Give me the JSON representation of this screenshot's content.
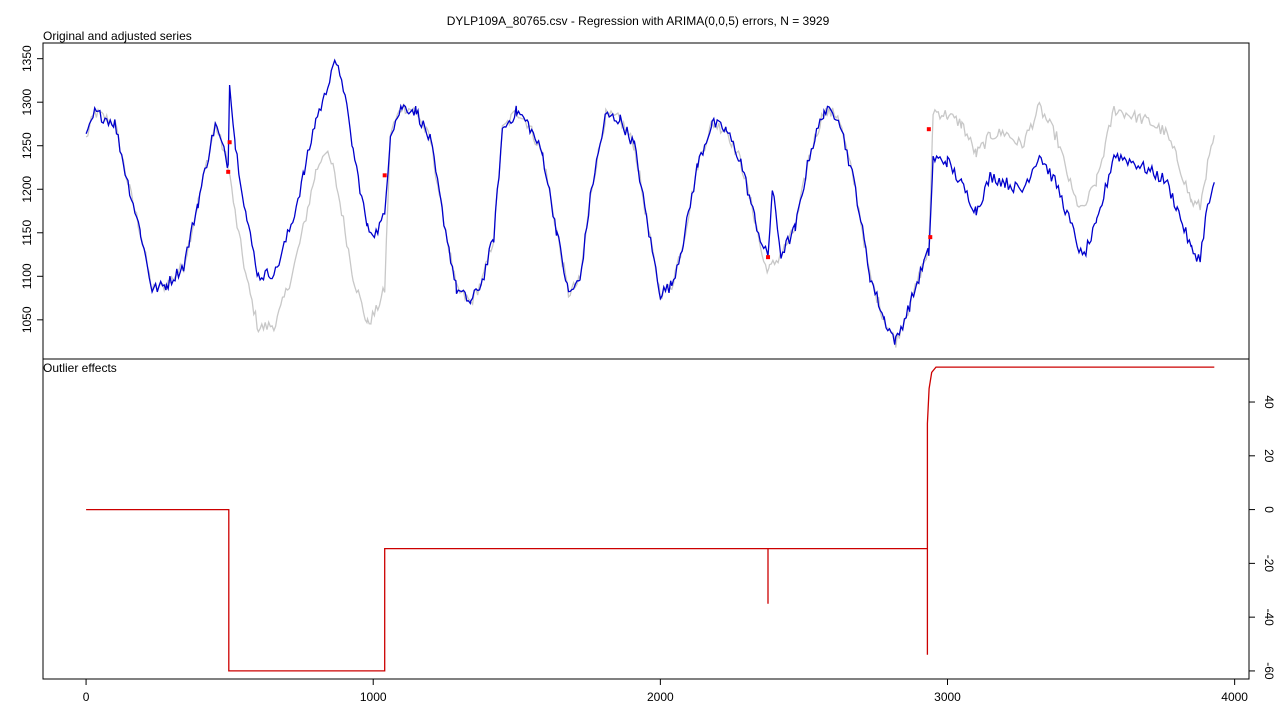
{
  "chart_data": [
    {
      "type": "line",
      "title": "DYLP109A_80765.csv - Regression with ARIMA(0,0,5) errors, N = 3929",
      "panel_label": "Original and adjusted series",
      "xlim": [
        -150,
        4050
      ],
      "ylim": [
        1005,
        1368
      ],
      "xticks": [
        0,
        1000,
        2000,
        3000,
        4000
      ],
      "yticks": [
        1050,
        1100,
        1150,
        1200,
        1250,
        1300,
        1350
      ],
      "colors": {
        "original": "#c8c8c8",
        "adjusted": "#0000cc",
        "outlier_marker": "#ff0000"
      },
      "series": [
        {
          "role": "original",
          "x": [
            0,
            30,
            60,
            100,
            140,
            190,
            230,
            280,
            340,
            390,
            450,
            495,
            520,
            560,
            600,
            660,
            720,
            760,
            800,
            830,
            860,
            890,
            930,
            980,
            1010,
            1040,
            1060,
            1100,
            1150,
            1200,
            1240,
            1290,
            1340,
            1380,
            1420,
            1450,
            1500,
            1540,
            1590,
            1640,
            1680,
            1720,
            1760,
            1810,
            1860,
            1910,
            1960,
            2000,
            2040,
            2080,
            2130,
            2180,
            2230,
            2280,
            2330,
            2360,
            2380,
            2420,
            2470,
            2520,
            2570,
            2620,
            2680,
            2730,
            2780,
            2820,
            2870,
            2920,
            2935,
            2950,
            3000,
            3050,
            3100,
            3150,
            3200,
            3260,
            3320,
            3380,
            3440,
            3470,
            3520,
            3580,
            3640,
            3700,
            3760,
            3800,
            3850,
            3880,
            3900,
            3929
          ],
          "y": [
            1258,
            1288,
            1283,
            1276,
            1215,
            1150,
            1085,
            1090,
            1112,
            1185,
            1275,
            1228,
            1170,
            1095,
            1040,
            1045,
            1105,
            1160,
            1220,
            1245,
            1225,
            1175,
            1100,
            1045,
            1060,
            1085,
            1265,
            1295,
            1290,
            1255,
            1175,
            1085,
            1070,
            1095,
            1145,
            1268,
            1290,
            1275,
            1240,
            1150,
            1080,
            1095,
            1200,
            1285,
            1280,
            1250,
            1150,
            1080,
            1090,
            1140,
            1228,
            1276,
            1268,
            1232,
            1165,
            1115,
            1108,
            1125,
            1155,
            1240,
            1290,
            1285,
            1200,
            1100,
            1050,
            1025,
            1068,
            1118,
            1128,
            1290,
            1285,
            1275,
            1240,
            1262,
            1265,
            1250,
            1294,
            1260,
            1192,
            1175,
            1210,
            1292,
            1285,
            1278,
            1265,
            1235,
            1185,
            1180,
            1218,
            1262
          ]
        },
        {
          "role": "adjusted",
          "x": [
            0,
            30,
            60,
            100,
            140,
            190,
            230,
            280,
            340,
            390,
            450,
            495,
            500,
            520,
            560,
            600,
            660,
            720,
            760,
            800,
            830,
            860,
            890,
            930,
            980,
            1010,
            1040,
            1060,
            1100,
            1150,
            1200,
            1240,
            1290,
            1340,
            1380,
            1420,
            1450,
            1500,
            1540,
            1590,
            1640,
            1680,
            1720,
            1760,
            1810,
            1860,
            1910,
            1960,
            2000,
            2040,
            2080,
            2130,
            2180,
            2230,
            2280,
            2330,
            2360,
            2375,
            2390,
            2420,
            2470,
            2520,
            2570,
            2620,
            2680,
            2730,
            2780,
            2820,
            2870,
            2920,
            2935,
            2950,
            3000,
            3050,
            3100,
            3150,
            3200,
            3260,
            3320,
            3380,
            3440,
            3470,
            3520,
            3580,
            3640,
            3700,
            3760,
            3800,
            3850,
            3880,
            3900,
            3929
          ],
          "y": [
            1258,
            1288,
            1283,
            1276,
            1215,
            1150,
            1085,
            1090,
            1112,
            1185,
            1275,
            1228,
            1325,
            1250,
            1165,
            1100,
            1105,
            1165,
            1220,
            1280,
            1305,
            1345,
            1330,
            1245,
            1155,
            1150,
            1170,
            1265,
            1295,
            1290,
            1255,
            1175,
            1085,
            1070,
            1095,
            1145,
            1268,
            1290,
            1275,
            1240,
            1150,
            1080,
            1095,
            1200,
            1285,
            1280,
            1250,
            1150,
            1080,
            1090,
            1140,
            1228,
            1276,
            1268,
            1232,
            1165,
            1130,
            1125,
            1200,
            1125,
            1155,
            1240,
            1290,
            1285,
            1200,
            1100,
            1050,
            1025,
            1068,
            1118,
            1128,
            1235,
            1232,
            1205,
            1175,
            1215,
            1208,
            1198,
            1240,
            1205,
            1150,
            1120,
            1160,
            1240,
            1232,
            1222,
            1210,
            1178,
            1130,
            1120,
            1170,
            1208
          ]
        }
      ],
      "outlier_markers": [
        {
          "x": 495,
          "y": 1220
        },
        {
          "x": 500,
          "y": 1254
        },
        {
          "x": 1040,
          "y": 1216
        },
        {
          "x": 2375,
          "y": 1122
        },
        {
          "x": 2935,
          "y": 1269
        },
        {
          "x": 2940,
          "y": 1145
        }
      ]
    },
    {
      "type": "line",
      "panel_label": "Outlier effects",
      "xlim": [
        -150,
        4050
      ],
      "ylim": [
        -63,
        56
      ],
      "yticks": [
        -60,
        -40,
        -20,
        0,
        20,
        40
      ],
      "color": "#cc0000",
      "series": [
        {
          "role": "effect",
          "x": [
            0,
            497,
            497,
            1040,
            1040,
            2375,
            2375,
            2375,
            2375,
            2930,
            2930,
            2930,
            2930,
            2936,
            2945,
            2960,
            3929
          ],
          "y": [
            0,
            0,
            -60,
            -60,
            -14.5,
            -14.5,
            -35,
            -14.5,
            -14.5,
            -14.5,
            -54,
            -14.5,
            32,
            45,
            51,
            53,
            53
          ]
        }
      ]
    }
  ]
}
